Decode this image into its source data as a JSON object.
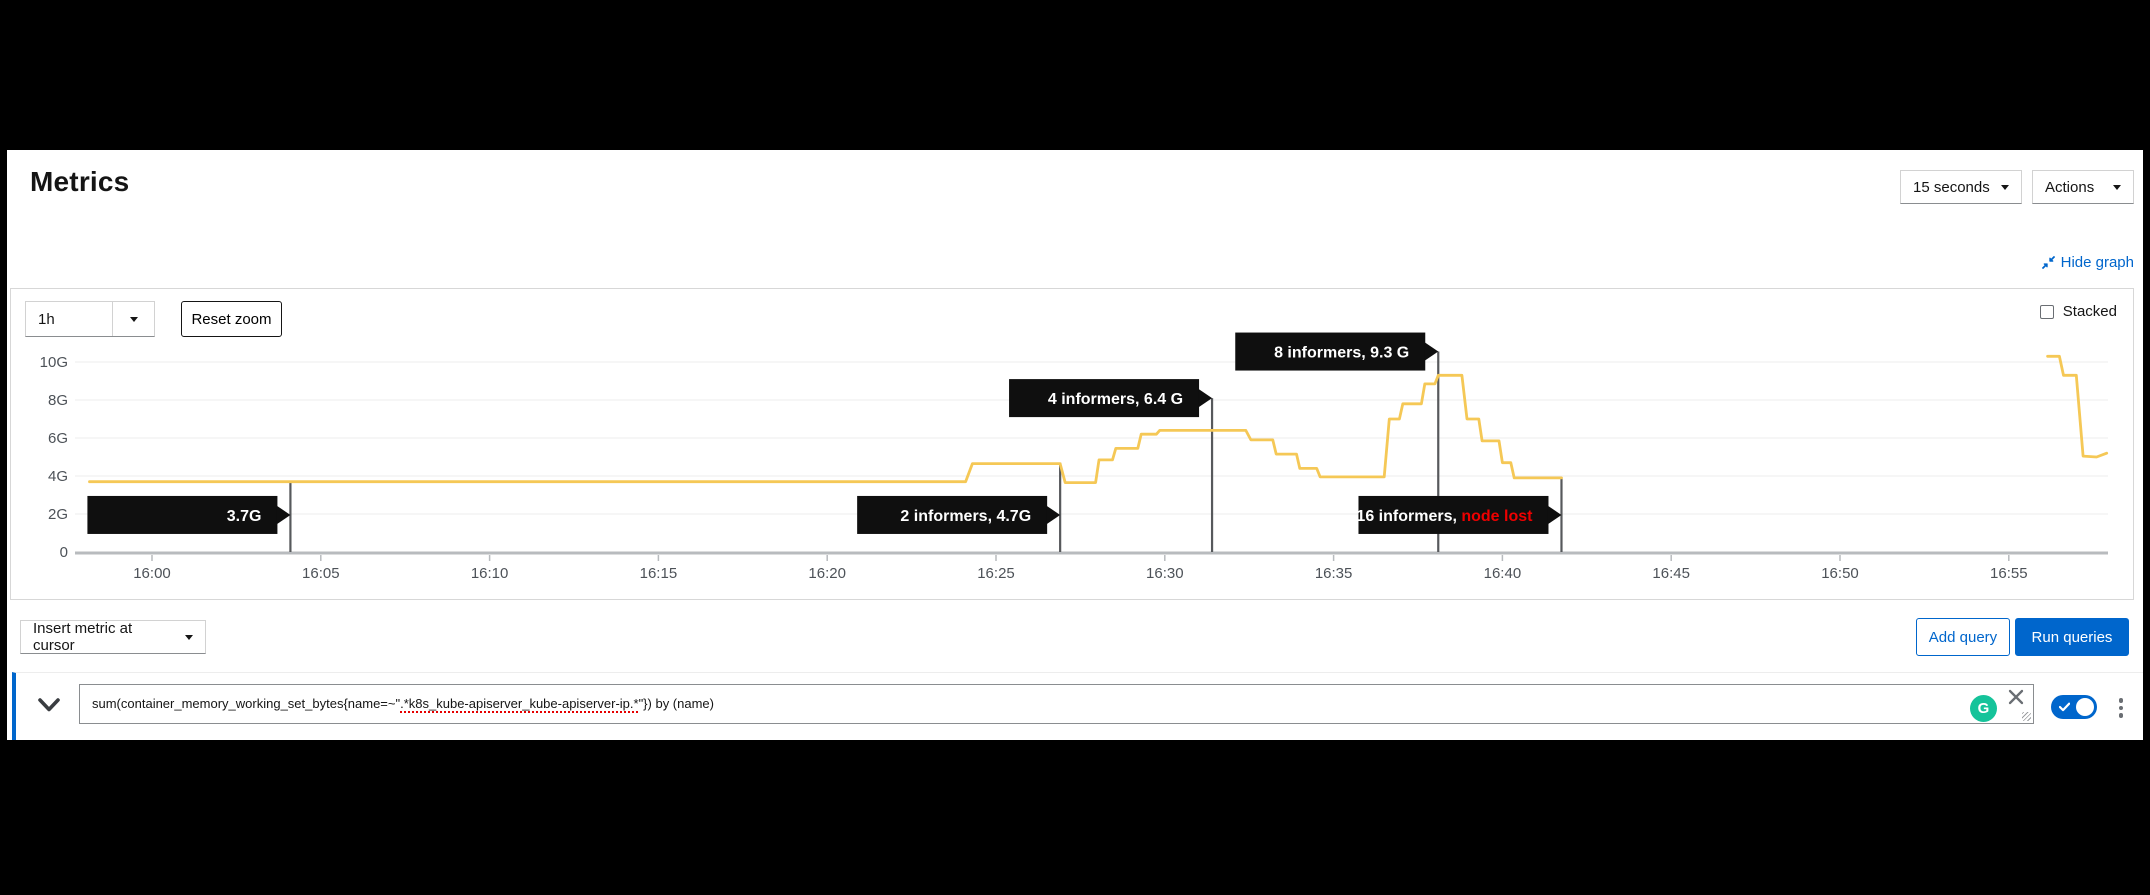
{
  "header": {
    "title": "Metrics",
    "interval": "15 seconds",
    "actions": "Actions"
  },
  "graph": {
    "hide_graph": "Hide graph",
    "duration": "1h",
    "reset_zoom": "Reset zoom",
    "stacked": "Stacked"
  },
  "chart_data": {
    "type": "line",
    "title": "",
    "xlabel": "",
    "ylabel": "",
    "legend": false,
    "grid": "horizontal",
    "unit": "bytes (G)",
    "ylim_g": [
      0,
      10.8
    ],
    "x_domain_minutes_from_1600": [
      -2.3,
      58.4
    ],
    "y_ticks": [
      {
        "v": 0,
        "label": "0"
      },
      {
        "v": 2,
        "label": "2G"
      },
      {
        "v": 4,
        "label": "4G"
      },
      {
        "v": 6,
        "label": "6G"
      },
      {
        "v": 8,
        "label": "8G"
      },
      {
        "v": 10,
        "label": "10G"
      }
    ],
    "x_ticks": [
      {
        "min": 0,
        "label": "16:00"
      },
      {
        "min": 5,
        "label": "16:05"
      },
      {
        "min": 10,
        "label": "16:10"
      },
      {
        "min": 15,
        "label": "16:15"
      },
      {
        "min": 20,
        "label": "16:20"
      },
      {
        "min": 25,
        "label": "16:25"
      },
      {
        "min": 30,
        "label": "16:30"
      },
      {
        "min": 35,
        "label": "16:35"
      },
      {
        "min": 40,
        "label": "16:40"
      },
      {
        "min": 45,
        "label": "16:45"
      },
      {
        "min": 50,
        "label": "16:50"
      },
      {
        "min": 55,
        "label": "16:55"
      }
    ],
    "series": [
      {
        "color": "#F5C856",
        "segments": [
          [
            [
              -1.85,
              3.7
            ],
            [
              24.1,
              3.7
            ],
            [
              24.3,
              4.65
            ],
            [
              26.9,
              4.65
            ],
            [
              27.05,
              3.65
            ],
            [
              27.95,
              3.65
            ],
            [
              28.05,
              4.85
            ],
            [
              28.45,
              4.85
            ],
            [
              28.55,
              5.45
            ],
            [
              29.2,
              5.45
            ],
            [
              29.3,
              6.2
            ],
            [
              29.75,
              6.2
            ],
            [
              29.85,
              6.4
            ],
            [
              32.4,
              6.4
            ],
            [
              32.55,
              5.9
            ],
            [
              33.2,
              5.9
            ],
            [
              33.3,
              5.15
            ],
            [
              33.9,
              5.15
            ],
            [
              34.0,
              4.4
            ],
            [
              34.5,
              4.4
            ],
            [
              34.6,
              3.95
            ],
            [
              36.5,
              3.95
            ],
            [
              36.65,
              7.0
            ],
            [
              36.95,
              7.0
            ],
            [
              37.05,
              7.8
            ],
            [
              37.6,
              7.8
            ],
            [
              37.7,
              8.85
            ],
            [
              38.0,
              8.85
            ],
            [
              38.1,
              9.3
            ],
            [
              38.8,
              9.3
            ],
            [
              38.95,
              7.0
            ],
            [
              39.3,
              7.0
            ],
            [
              39.4,
              5.85
            ],
            [
              39.9,
              5.85
            ],
            [
              40.0,
              4.7
            ],
            [
              40.25,
              4.7
            ],
            [
              40.35,
              3.9
            ],
            [
              41.75,
              3.9
            ]
          ],
          [
            [
              56.15,
              10.3
            ],
            [
              56.5,
              10.3
            ],
            [
              56.62,
              9.3
            ],
            [
              57.0,
              9.3
            ],
            [
              57.2,
              5.05
            ],
            [
              57.6,
              5.0
            ],
            [
              57.9,
              5.2
            ]
          ]
        ]
      }
    ],
    "annotations": [
      {
        "time": "16:04",
        "t_min": 4.1,
        "label": "3.7G",
        "highlight": "",
        "value_g": 3.7,
        "box_center_g": 1.95
      },
      {
        "time": "16:27",
        "t_min": 26.9,
        "label": "2 informers, 4.7G",
        "highlight": "",
        "value_g": 4.7,
        "box_center_g": 1.95
      },
      {
        "time": "16:31",
        "t_min": 31.4,
        "label": "4 informers, 6.4 G",
        "highlight": "",
        "value_g": 6.4,
        "box_center_g": 8.1
      },
      {
        "time": "16:38",
        "t_min": 38.1,
        "label": "8 informers, 9.3 G",
        "highlight": "",
        "value_g": 9.3,
        "box_center_g": 10.55
      },
      {
        "time": "16:42",
        "t_min": 41.75,
        "label": "16 informers, ",
        "highlight": "node lost",
        "value_g": 3.9,
        "box_center_g": 1.95
      }
    ]
  },
  "query_bar": {
    "insert_metric": "Insert metric at cursor",
    "add_query": "Add query",
    "run_queries": "Run queries"
  },
  "query": {
    "pre": "sum(container_memory_working_set_bytes{name=~\"",
    "flagged": ".*k8s_kube-apiserver_kube-apiserver-ip.*",
    "post": "\"}) by (name)",
    "enabled": true,
    "grammarly_letter": "G"
  },
  "colors": {
    "accent_blue": "#0066cc",
    "line_gold": "#F5C856",
    "alert_red": "#ee0000",
    "tooltip_bg": "#0f0f0f",
    "grammarly_green": "#15c39a"
  }
}
